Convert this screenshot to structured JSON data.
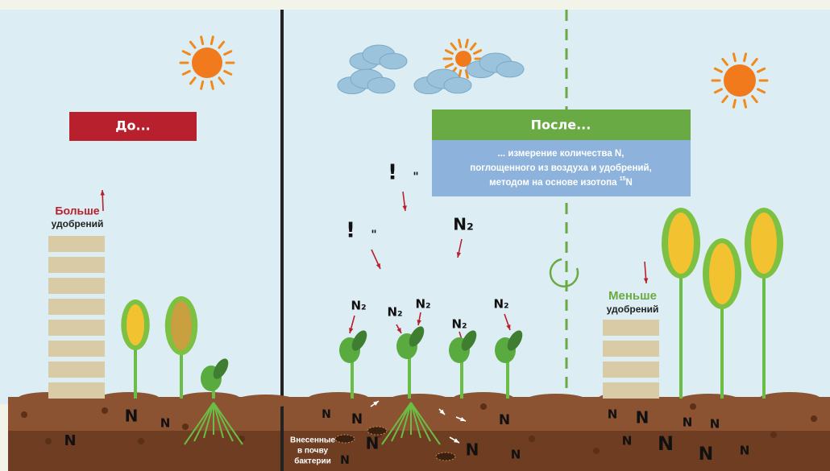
{
  "panels": {
    "before": {
      "title": "До...",
      "fertilizer": {
        "amount": "Больше",
        "label": "удобрений"
      }
    },
    "after": {
      "title": "После...",
      "description": {
        "lines": [
          "... измерение количества N,",
          "поглощенного из воздуха и удобрений,",
          "методом на основе изотопа"
        ],
        "isotope_mass": "15",
        "isotope_element": "N"
      },
      "fertilizer": {
        "amount": "Меньше",
        "label": "удобрений"
      }
    }
  },
  "air_labels": [
    "N₂",
    "N₂",
    "N₂",
    "N₂",
    "N₂",
    "N₂"
  ],
  "marks": [
    "!",
    "\"",
    "!",
    "\""
  ],
  "soil_labels": [
    "N",
    "N",
    "N",
    "N",
    "N",
    "N",
    "N",
    "N",
    "N",
    "N",
    "N",
    "N",
    "N",
    "N",
    "N",
    "N",
    "N",
    "N"
  ],
  "bacteria_caption": [
    "Внесенные",
    "в почву",
    "бактерии"
  ]
}
